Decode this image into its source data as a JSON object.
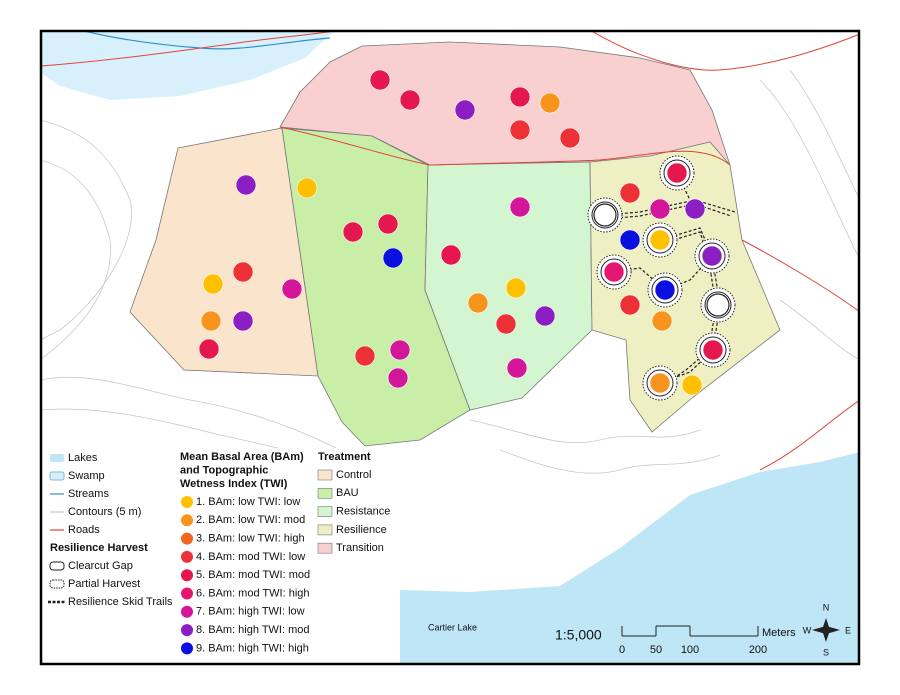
{
  "legend": {
    "base_layers": [
      {
        "label": "Lakes",
        "color": "#bfe6f7"
      },
      {
        "label": "Swamp",
        "color": "#d8f0fb"
      },
      {
        "label": "Streams",
        "color": "#2e8fd0"
      },
      {
        "label": "Contours (5 m)",
        "color": "#c9c9c9"
      },
      {
        "label": "Roads",
        "color": "#e0443a"
      }
    ],
    "harvest_title": "Resilience Harvest",
    "harvest_items": [
      "Clearcut Gap",
      "Partial Harvest",
      "Resilience Skid Trails"
    ],
    "plots_title": [
      "Mean Basal Area (BAm)",
      "and Topographic",
      "Wetness Index (TWI)"
    ],
    "plot_classes": [
      {
        "label": "1. BAm: low TWI: low",
        "color": "#ffc000"
      },
      {
        "label": "2. BAm: low TWI: mod",
        "color": "#f7941d"
      },
      {
        "label": "3. BAm: low TWI: high",
        "color": "#f26522"
      },
      {
        "label": "4. BAm: mod TWI: low",
        "color": "#ed3237"
      },
      {
        "label": "5. BAm: mod TWI: mod",
        "color": "#e4174f"
      },
      {
        "label": "6. BAm: mod TWI: high",
        "color": "#e5166f"
      },
      {
        "label": "7. BAm: high TWI: low",
        "color": "#d4169a"
      },
      {
        "label": "8. BAm: high TWI: mod",
        "color": "#8b1fc4"
      },
      {
        "label": "9. BAm: high TWI: high",
        "color": "#0a10e0"
      }
    ],
    "treatment_title": "Treatment",
    "treatments": [
      {
        "label": "Control",
        "color": "#fbe4cc"
      },
      {
        "label": "BAU",
        "color": "#c8eea8"
      },
      {
        "label": "Resistance",
        "color": "#d3f5d0"
      },
      {
        "label": "Resilience",
        "color": "#eef0c4"
      },
      {
        "label": "Transition",
        "color": "#f8d0d0"
      }
    ]
  },
  "map": {
    "lake_label": "Cartier Lake"
  },
  "scale": {
    "ratio": "1:5,000",
    "unit": "Meters",
    "ticks": [
      0,
      50,
      100,
      200
    ]
  },
  "north_arrow": {
    "n": "N",
    "e": "E",
    "s": "S",
    "w": "W"
  }
}
